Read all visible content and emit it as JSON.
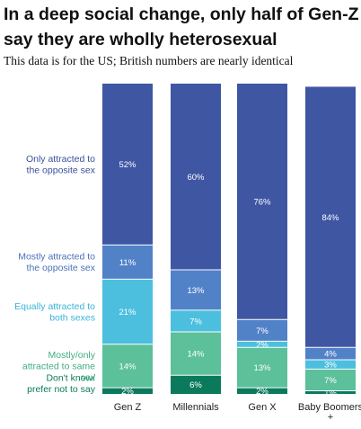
{
  "title": "In a deep social change, only half of Gen-Z say they are wholly heterosexual",
  "subtitle": "This data is for the US; British numbers are nearly identical",
  "chart_data": {
    "type": "bar",
    "stacked": true,
    "categories": [
      "Gen Z",
      "Millennials",
      "Gen X",
      "Baby Boomers +"
    ],
    "series": [
      {
        "name": "Don't know/ prefer not to say",
        "color": "#0b7a5c",
        "label_color": "#0b7a5c",
        "values": [
          2,
          6,
          2,
          1
        ],
        "labels": [
          "2%",
          "6%",
          "2%",
          "1%"
        ]
      },
      {
        "name": "Mostly/only attracted to same sex",
        "color": "#5cc09a",
        "label_color": "#3fae84",
        "values": [
          14,
          14,
          13,
          7
        ],
        "labels": [
          "14%",
          "14%",
          "13%",
          "7%"
        ]
      },
      {
        "name": "Equally attracted to both sexes",
        "color": "#4cbfdf",
        "label_color": "#3ab5d8",
        "values": [
          21,
          7,
          2,
          3
        ],
        "labels": [
          "21%",
          "7%",
          "2%",
          "3%"
        ]
      },
      {
        "name": "Mostly attracted to the opposite sex",
        "color": "#5182c8",
        "label_color": "#4a72b8",
        "values": [
          11,
          13,
          7,
          4
        ],
        "labels": [
          "11%",
          "13%",
          "7%",
          "4%"
        ]
      },
      {
        "name": "Only attracted to the opposite sex",
        "color": "#3f56a3",
        "label_color": "#3a4f9c",
        "values": [
          52,
          60,
          76,
          84
        ],
        "labels": [
          "52%",
          "60%",
          "76%",
          "84%"
        ]
      }
    ],
    "ylim": [
      0,
      100
    ]
  }
}
